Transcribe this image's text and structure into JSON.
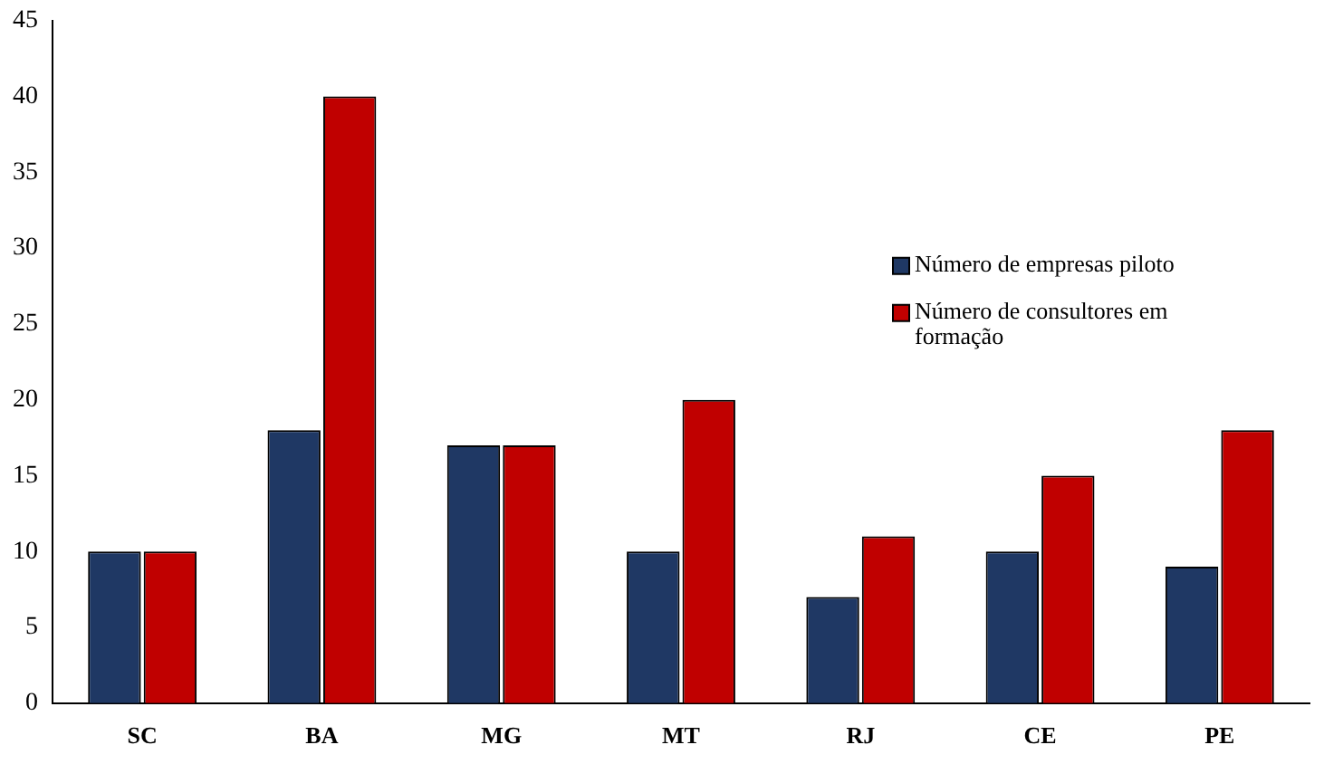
{
  "chart_data": {
    "type": "bar",
    "categories": [
      "SC",
      "BA",
      "MG",
      "MT",
      "RJ",
      "CE",
      "PE"
    ],
    "series": [
      {
        "name": "Número de empresas piloto",
        "color": "#1f3864",
        "values": [
          10,
          18,
          17,
          10,
          7,
          10,
          9
        ]
      },
      {
        "name": "Número de consultores em formação",
        "color": "#c00000",
        "values": [
          10,
          40,
          17,
          20,
          11,
          15,
          18
        ]
      }
    ],
    "ylim": [
      0,
      45
    ],
    "yticks": [
      0,
      5,
      10,
      15,
      20,
      25,
      30,
      35,
      40,
      45
    ],
    "grid": false,
    "legend": "right"
  }
}
